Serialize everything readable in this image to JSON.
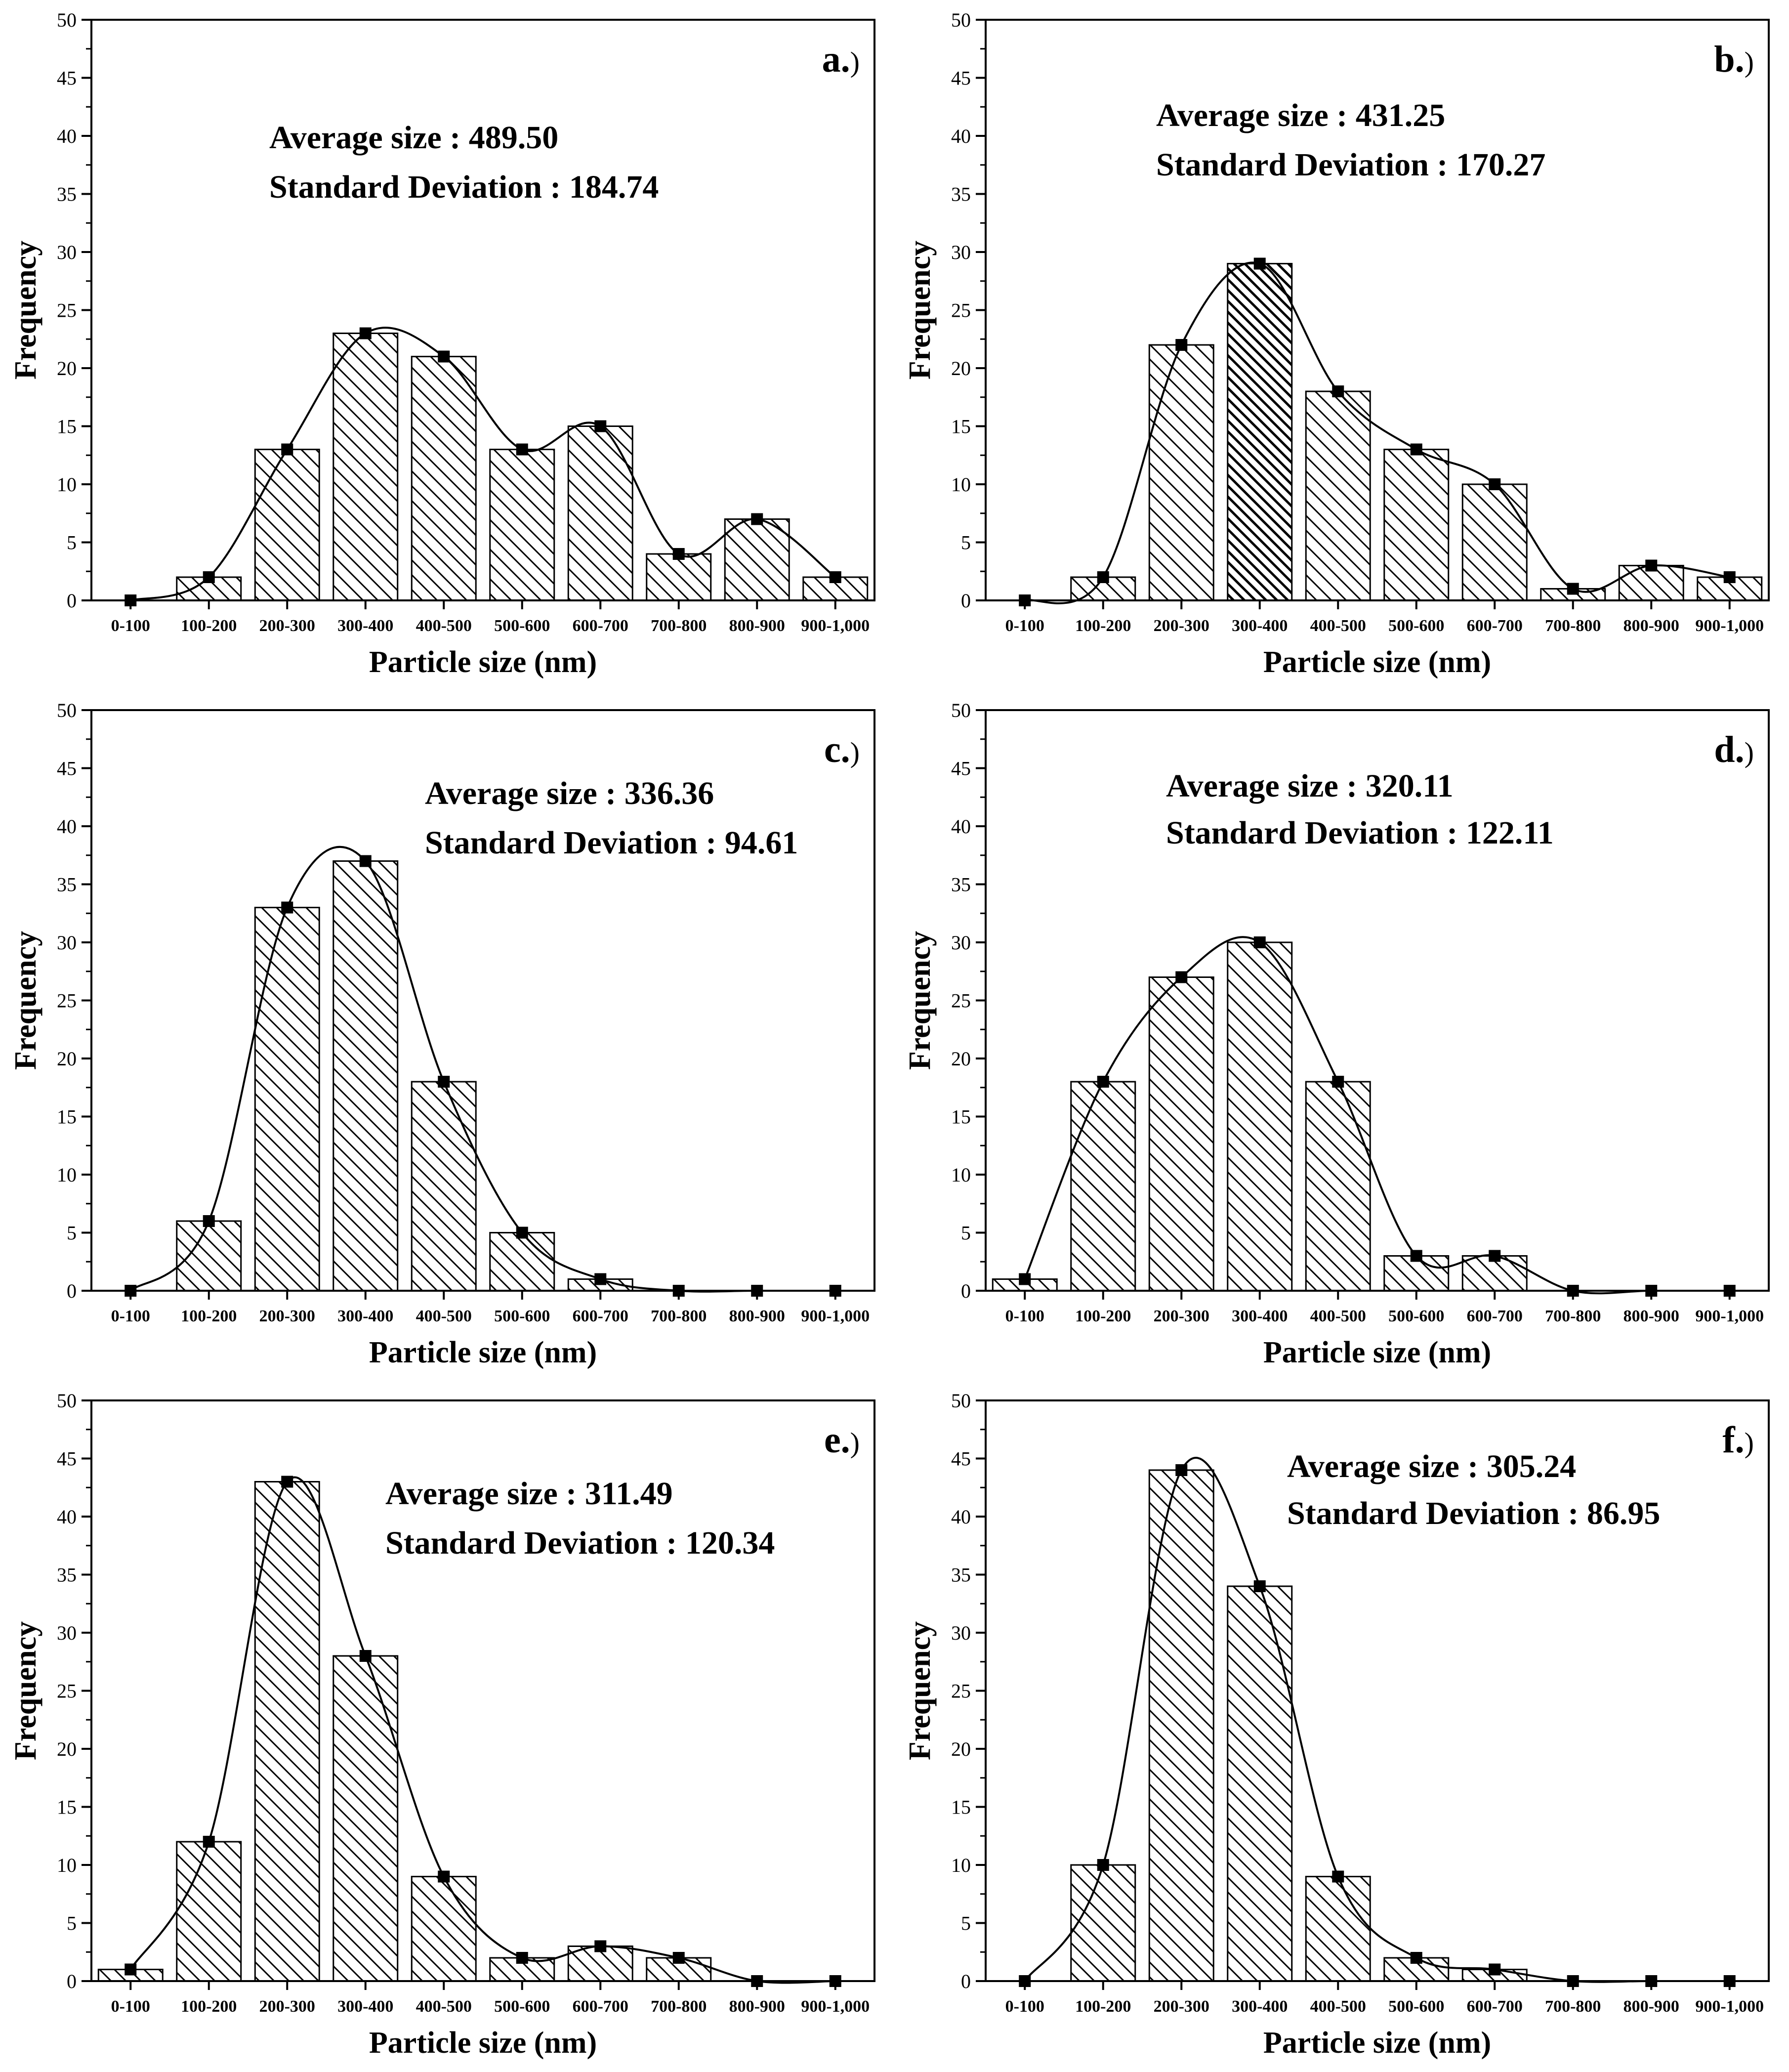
{
  "colors": {
    "ink": "#000000",
    "bar_fill": "#ffffff",
    "hatch": "#000000",
    "background": "#ffffff"
  },
  "chart_data": [
    {
      "type": "bar",
      "panel_label": "a.",
      "panel_paren": ")",
      "categories": [
        "0-100",
        "100-200",
        "200-300",
        "300-400",
        "400-500",
        "500-600",
        "600-700",
        "700-800",
        "800-900",
        "900-1,000"
      ],
      "values": [
        0,
        2,
        13,
        23,
        21,
        13,
        15,
        4,
        7,
        2
      ],
      "ylim": [
        0,
        50
      ],
      "yticks": [
        "0",
        "5",
        "10",
        "15",
        "20",
        "25",
        "30",
        "35",
        "40",
        "45",
        "50"
      ],
      "xlabel": "Particle size (nm)",
      "ylabel": "Frequency",
      "annotation": {
        "average": "Average size : 489.50",
        "std": "Standard Deviation : 184.74"
      },
      "overlay": "smoothed curve through bar tops with square markers"
    },
    {
      "type": "bar",
      "panel_label": "b.",
      "panel_paren": ")",
      "categories": [
        "0-100",
        "100-200",
        "200-300",
        "300-400",
        "400-500",
        "500-600",
        "600-700",
        "700-800",
        "800-900",
        "900-1,000"
      ],
      "values": [
        0,
        2,
        22,
        29,
        18,
        13,
        10,
        1,
        3,
        2
      ],
      "ylim": [
        0,
        50
      ],
      "yticks": [
        "0",
        "5",
        "10",
        "15",
        "20",
        "25",
        "30",
        "35",
        "40",
        "45",
        "50"
      ],
      "xlabel": "Particle size (nm)",
      "ylabel": "Frequency",
      "annotation": {
        "average": "Average size : 431.25",
        "std": "Standard Deviation  : 170.27"
      },
      "overlay": "smoothed curve through bar tops with square markers"
    },
    {
      "type": "bar",
      "panel_label": "c.",
      "panel_paren": ")",
      "categories": [
        "0-100",
        "100-200",
        "200-300",
        "300-400",
        "400-500",
        "500-600",
        "600-700",
        "700-800",
        "800-900",
        "900-1,000"
      ],
      "values": [
        0,
        6,
        33,
        37,
        18,
        5,
        1,
        0,
        0,
        0
      ],
      "ylim": [
        0,
        50
      ],
      "yticks": [
        "0",
        "5",
        "10",
        "15",
        "20",
        "25",
        "30",
        "35",
        "40",
        "45",
        "50"
      ],
      "xlabel": "Particle size (nm)",
      "ylabel": "Frequency",
      "annotation": {
        "average": "Average size : 336.36",
        "std": "Standard Deviation : 94.61"
      },
      "overlay": "smoothed curve through bar tops with square markers"
    },
    {
      "type": "bar",
      "panel_label": "d.",
      "panel_paren": ")",
      "categories": [
        "0-100",
        "100-200",
        "200-300",
        "300-400",
        "400-500",
        "500-600",
        "600-700",
        "700-800",
        "800-900",
        "900-1,000"
      ],
      "values": [
        1,
        18,
        27,
        30,
        18,
        3,
        3,
        0,
        0,
        0
      ],
      "ylim": [
        0,
        50
      ],
      "yticks": [
        "0",
        "5",
        "10",
        "15",
        "20",
        "25",
        "30",
        "35",
        "40",
        "45",
        "50"
      ],
      "xlabel": "Particle size (nm)",
      "ylabel": "Frequency",
      "annotation": {
        "average": "Average size : 320.11",
        "std": "Standard Deviation : 122.11"
      },
      "overlay": "smoothed curve through bar tops with square markers"
    },
    {
      "type": "bar",
      "panel_label": "e.",
      "panel_paren": ")",
      "categories": [
        "0-100",
        "100-200",
        "200-300",
        "300-400",
        "400-500",
        "500-600",
        "600-700",
        "700-800",
        "800-900",
        "900-1,000"
      ],
      "values": [
        1,
        12,
        43,
        28,
        9,
        2,
        3,
        2,
        0,
        0
      ],
      "ylim": [
        0,
        50
      ],
      "yticks": [
        "0",
        "5",
        "10",
        "15",
        "20",
        "25",
        "30",
        "35",
        "40",
        "45",
        "50"
      ],
      "xlabel": "Particle size (nm)",
      "ylabel": "Frequency",
      "annotation": {
        "average": "Average size : 311.49",
        "std": "Standard Deviation : 120.34"
      },
      "overlay": "smoothed curve through bar tops with square markers"
    },
    {
      "type": "bar",
      "panel_label": "f.",
      "panel_paren": ")",
      "categories": [
        "0-100",
        "100-200",
        "200-300",
        "300-400",
        "400-500",
        "500-600",
        "600-700",
        "700-800",
        "800-900",
        "900-1,000"
      ],
      "values": [
        0,
        10,
        44,
        34,
        9,
        2,
        1,
        0,
        0,
        0
      ],
      "ylim": [
        0,
        50
      ],
      "yticks": [
        "0",
        "5",
        "10",
        "15",
        "20",
        "25",
        "30",
        "35",
        "40",
        "45",
        "50"
      ],
      "xlabel": "Particle size (nm)",
      "ylabel": "Frequency",
      "annotation": {
        "average": "Average size : 305.24",
        "std": "Standard Deviation : 86.95"
      },
      "overlay": "smoothed curve through bar tops with square markers"
    }
  ]
}
